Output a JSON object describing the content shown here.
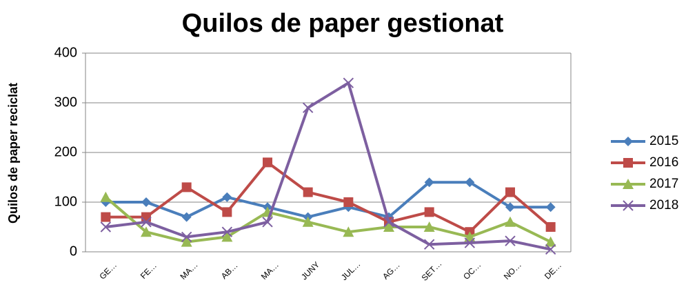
{
  "chart_data": {
    "type": "line",
    "title": "Quilos de paper gestionat",
    "y_label": "Quilos de paper reciclat",
    "categories": [
      "GE…",
      "FE…",
      "MA…",
      "AB…",
      "MA…",
      "JUNY",
      "JUL…",
      "AG…",
      "SET…",
      "OC…",
      "NO…",
      "DE…"
    ],
    "series": [
      {
        "name": "2015",
        "color": "#4a7ebb",
        "marker": "diamond",
        "values": [
          100,
          100,
          70,
          110,
          90,
          70,
          90,
          70,
          140,
          140,
          90,
          90
        ]
      },
      {
        "name": "2016",
        "color": "#be4b48",
        "marker": "square",
        "values": [
          70,
          70,
          130,
          80,
          180,
          120,
          100,
          60,
          80,
          40,
          120,
          50
        ]
      },
      {
        "name": "2017",
        "color": "#98b954",
        "marker": "triangle",
        "values": [
          110,
          40,
          20,
          30,
          80,
          60,
          40,
          50,
          50,
          30,
          60,
          20
        ]
      },
      {
        "name": "2018",
        "color": "#7d5fa0",
        "marker": "x",
        "values": [
          50,
          60,
          30,
          40,
          60,
          290,
          340,
          60,
          15,
          18,
          22,
          5
        ]
      }
    ],
    "ylim": [
      0,
      400
    ],
    "yticks": [
      0,
      100,
      200,
      300,
      400
    ],
    "grid": true,
    "legend": "right"
  }
}
